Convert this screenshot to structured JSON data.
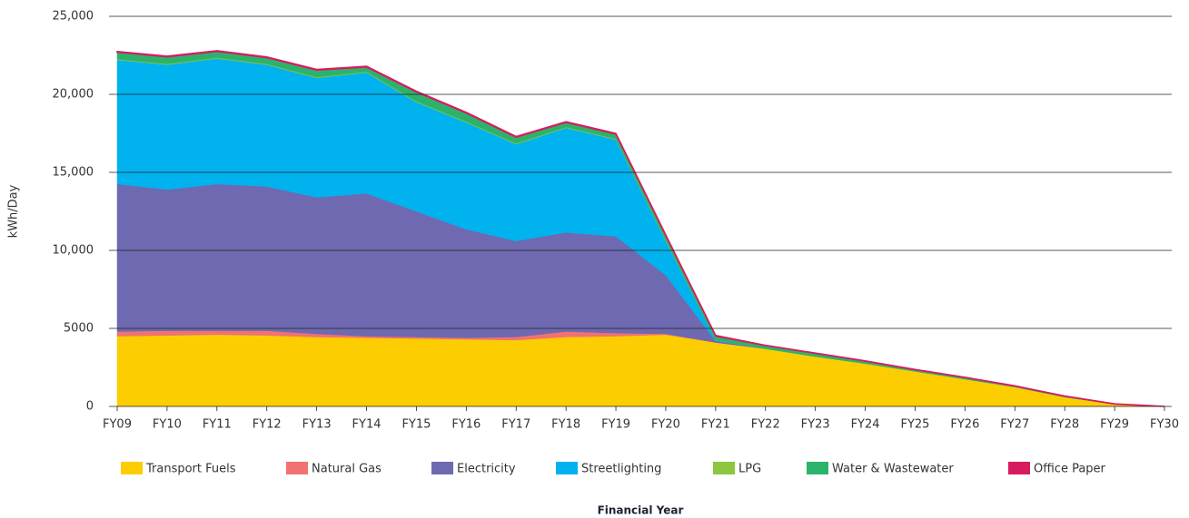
{
  "chart_data": {
    "type": "stacked_area",
    "y_label": "kWh/Day",
    "x_label": "Financial Year",
    "categories": [
      "FY09",
      "FY10",
      "FY11",
      "FY12",
      "FY13",
      "FY14",
      "FY15",
      "FY16",
      "FY17",
      "FY18",
      "FY19",
      "FY20",
      "FY21",
      "FY22",
      "FY23",
      "FY24",
      "FY25",
      "FY26",
      "FY27",
      "FY28",
      "FY29",
      "FY30"
    ],
    "series": [
      {
        "name": "Transport Fuels",
        "color": "#fccd00",
        "values": [
          4500,
          4550,
          4600,
          4550,
          4450,
          4400,
          4350,
          4300,
          4250,
          4450,
          4500,
          4600,
          4100,
          3700,
          3200,
          2750,
          2250,
          1750,
          1250,
          600,
          150,
          0
        ]
      },
      {
        "name": "Natural Gas",
        "color": "#f07272",
        "values": [
          300,
          300,
          250,
          300,
          200,
          100,
          100,
          100,
          200,
          350,
          200,
          50,
          0,
          0,
          0,
          0,
          0,
          0,
          0,
          0,
          0,
          0
        ]
      },
      {
        "name": "Electricity",
        "color": "#6e69b0",
        "values": [
          9450,
          9050,
          9400,
          9250,
          8750,
          9150,
          8050,
          6950,
          6150,
          6350,
          6200,
          3750,
          100,
          0,
          0,
          0,
          0,
          0,
          0,
          0,
          0,
          0
        ]
      },
      {
        "name": "Streetlighting",
        "color": "#00b2ee",
        "values": [
          7950,
          8000,
          8050,
          7800,
          7650,
          7750,
          7000,
          6850,
          6200,
          6700,
          6200,
          2200,
          50,
          0,
          0,
          0,
          0,
          0,
          0,
          0,
          0,
          0
        ]
      },
      {
        "name": "LPG",
        "color": "#8dc63f",
        "values": [
          50,
          50,
          50,
          50,
          50,
          50,
          50,
          50,
          50,
          50,
          50,
          50,
          0,
          0,
          0,
          0,
          0,
          0,
          0,
          0,
          0,
          0
        ]
      },
      {
        "name": "Water & Wastewater",
        "color": "#2cb36b",
        "values": [
          450,
          450,
          400,
          400,
          450,
          300,
          600,
          550,
          400,
          300,
          300,
          300,
          250,
          200,
          200,
          150,
          100,
          100,
          50,
          50,
          0,
          0
        ]
      },
      {
        "name": "Office Paper",
        "color": "#d81b5f",
        "values": [
          50,
          50,
          50,
          50,
          50,
          50,
          50,
          50,
          50,
          50,
          50,
          50,
          50,
          20,
          20,
          20,
          20,
          20,
          20,
          20,
          20,
          0
        ]
      }
    ],
    "ylim": [
      0,
      25000
    ],
    "yticks": [
      0,
      5000,
      {
        "value": 10000,
        "label": "10,000"
      },
      {
        "value": 15000,
        "label": "15,000"
      },
      {
        "value": 20000,
        "label": "20,000"
      },
      {
        "value": 25000,
        "label": "25,000"
      }
    ],
    "grid": true
  }
}
